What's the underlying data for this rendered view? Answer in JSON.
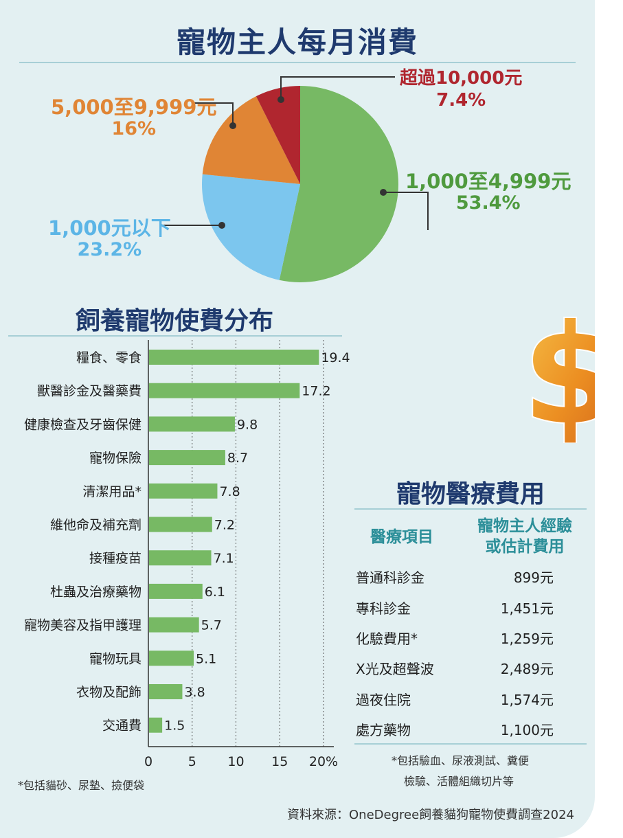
{
  "pie": {
    "title": "寵物主人每月消費",
    "chart_data": {
      "type": "pie",
      "slices": [
        {
          "label": "1,000至4,999元",
          "value": 53.4,
          "pct": "53.4%",
          "color": "#77b964"
        },
        {
          "label": "1,000元以下",
          "value": 23.2,
          "pct": "23.2%",
          "color": "#7cc6ee"
        },
        {
          "label": "5,000至9,999元",
          "value": 16,
          "pct": "16%",
          "color": "#e08535"
        },
        {
          "label": "超過10,000元",
          "value": 7.4,
          "pct": "7.4%",
          "color": "#b0262f"
        }
      ]
    }
  },
  "bar": {
    "title": "飼養寵物使費分布",
    "chart_data": {
      "type": "bar",
      "orientation": "horizontal",
      "categories": [
        "糧食、零食",
        "獸醫診金及醫藥費",
        "健康檢查及牙齒保健",
        "寵物保險",
        "清潔用品*",
        "維他命及補充劑",
        "接種疫苗",
        "杜蟲及治療藥物",
        "寵物美容及指甲護理",
        "寵物玩具",
        "衣物及配飾",
        "交通費"
      ],
      "values": [
        19.4,
        17.2,
        9.8,
        8.7,
        7.8,
        7.2,
        7.1,
        6.1,
        5.7,
        5.1,
        3.8,
        1.5
      ],
      "value_labels": [
        "19.4",
        "17.2",
        "9.8",
        "8.7",
        "7.8",
        "7.2",
        "7.1",
        "6.1",
        "5.7",
        "5.1",
        "3.8",
        "1.5"
      ],
      "xlim": [
        0,
        20
      ],
      "xticks": [
        "0",
        "5",
        "10",
        "15",
        "20"
      ],
      "x_unit": "%",
      "grid": "vertical dotted",
      "bar_color": "#77b964"
    },
    "footnote": "*包括貓砂、尿墊、撿便袋"
  },
  "medical": {
    "title": "寵物醫療費用",
    "headers": {
      "item": "醫療項目",
      "cost_line1": "寵物主人經驗",
      "cost_line2": "或估計費用"
    },
    "rows": [
      {
        "item": "普通科診金",
        "cost": "899元"
      },
      {
        "item": "專科診金",
        "cost": "1,451元"
      },
      {
        "item": "化驗費用*",
        "cost": "1,259元"
      },
      {
        "item": "X光及超聲波",
        "cost": "2,489元"
      },
      {
        "item": "過夜住院",
        "cost": "1,574元"
      },
      {
        "item": "處方藥物",
        "cost": "1,100元"
      }
    ],
    "footnote_line1": "*包括驗血、尿液測試、糞便",
    "footnote_line2": "檢驗、活體組織切片等"
  },
  "dollar_symbol": "$",
  "source": "資料來源：OneDegree飼養貓狗寵物使費調查2024"
}
